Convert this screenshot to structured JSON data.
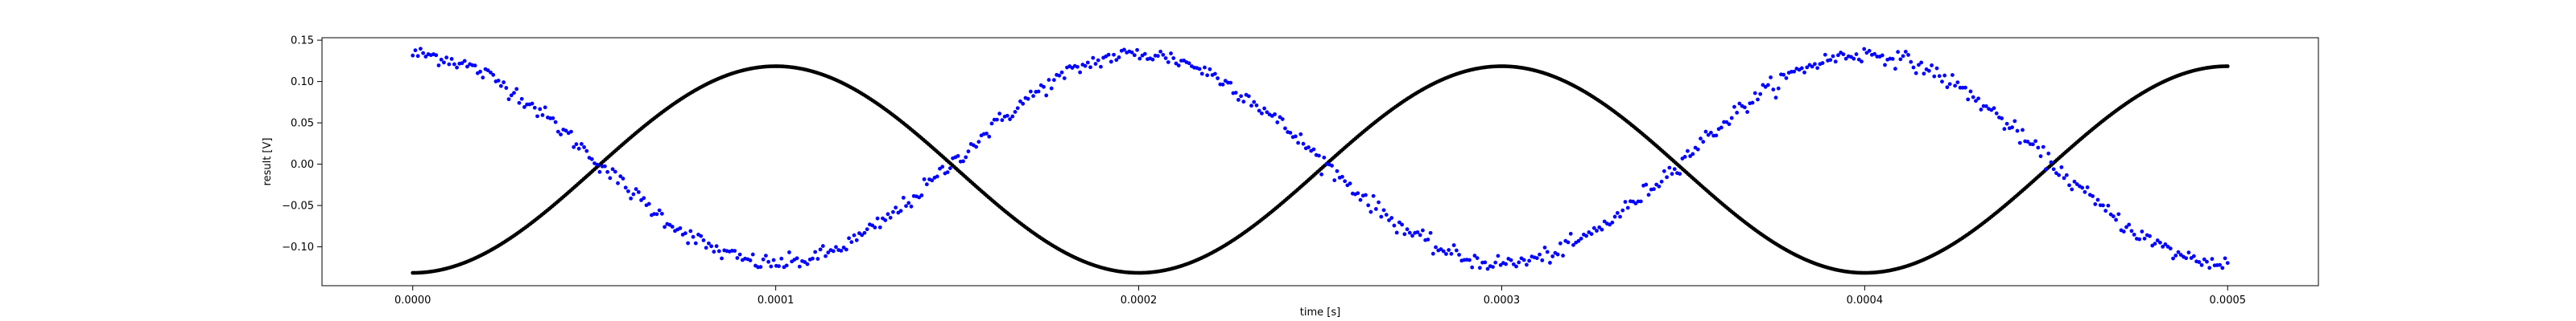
{
  "chart_data": {
    "type": "scatter",
    "title": "",
    "xlabel": "time [s]",
    "ylabel": "result [V]",
    "xlim": [
      -2.5e-05,
      0.000525
    ],
    "ylim": [
      -0.147,
      0.153
    ],
    "x_ticks": [
      0.0,
      0.0001,
      0.0002,
      0.0003,
      0.0004,
      0.0005
    ],
    "x_tick_labels": [
      "0.0000",
      "0.0001",
      "0.0002",
      "0.0003",
      "0.0004",
      "0.0005"
    ],
    "y_ticks": [
      -0.1,
      -0.05,
      0.0,
      0.05,
      0.1,
      0.15
    ],
    "y_tick_labels": [
      "−0.10",
      "−0.05",
      "0.00",
      "0.05",
      "0.10",
      "0.15"
    ],
    "grid": false,
    "legend": "none",
    "series": [
      {
        "color": "#000000",
        "marker": "dot",
        "function": "cosine",
        "amplitude": 0.125,
        "offset": -0.0065,
        "period": 0.0002,
        "phase": 3.14159,
        "x_start": 0.0,
        "x_end": 0.0005,
        "points": 1000,
        "noise": 0.0
      },
      {
        "color": "#0000ff",
        "marker": "dot",
        "function": "cosine",
        "amplitude": 0.1265,
        "offset": 0.0065,
        "period": 0.0002,
        "phase": 0.0,
        "x_start": 0.0,
        "x_end": 0.0005,
        "points": 700,
        "noise": 0.005
      }
    ]
  }
}
